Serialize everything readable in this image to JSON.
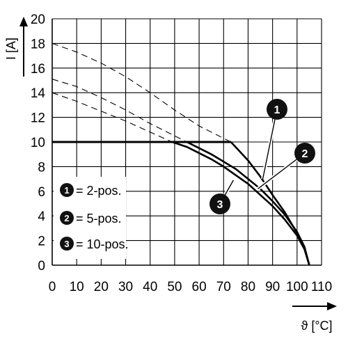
{
  "chart_data": {
    "type": "line",
    "xlabel": "ϑ [°C]",
    "ylabel": "I [A]",
    "xlim": [
      0,
      110
    ],
    "ylim": [
      0,
      20
    ],
    "x_ticks": [
      "0",
      "10",
      "20",
      "30",
      "40",
      "50",
      "60",
      "70",
      "80",
      "90",
      "100",
      "110"
    ],
    "y_ticks": [
      "0",
      "2",
      "4",
      "6",
      "8",
      "10",
      "12",
      "14",
      "16",
      "18",
      "20"
    ],
    "grid": true,
    "legend": {
      "placement": "lower-left",
      "entries": [
        {
          "badge": "1",
          "label": "= 2-pos."
        },
        {
          "badge": "2",
          "label": "= 5-pos."
        },
        {
          "badge": "3",
          "label": "= 10-pos."
        }
      ]
    },
    "limit_line": {
      "x": [
        0,
        73
      ],
      "y": [
        10,
        10
      ]
    },
    "series": [
      {
        "badge": "1",
        "dashed": {
          "x": [
            0,
            10,
            20,
            30,
            40,
            50,
            60,
            70,
            73
          ],
          "y": [
            18.0,
            17.3,
            16.4,
            15.3,
            14.0,
            12.6,
            11.3,
            10.3,
            10.0
          ]
        },
        "solid": {
          "x": [
            73,
            80,
            85,
            90,
            95,
            100,
            103,
            105
          ],
          "y": [
            10.0,
            8.5,
            7.2,
            5.7,
            4.3,
            2.6,
            1.4,
            0
          ]
        }
      },
      {
        "badge": "2",
        "dashed": {
          "x": [
            0,
            10,
            20,
            30,
            40,
            50,
            55
          ],
          "y": [
            15.1,
            14.5,
            13.6,
            12.6,
            11.5,
            10.5,
            10.0
          ]
        },
        "solid": {
          "x": [
            55,
            60,
            65,
            70,
            75,
            80,
            85,
            90,
            95,
            100,
            103,
            105
          ],
          "y": [
            10.0,
            9.5,
            9.0,
            8.4,
            7.8,
            7.0,
            6.2,
            5.2,
            4.1,
            2.7,
            1.5,
            0
          ]
        }
      },
      {
        "badge": "3",
        "dashed": {
          "x": [
            0,
            10,
            20,
            30,
            40,
            49
          ],
          "y": [
            14.0,
            13.3,
            12.5,
            11.7,
            10.8,
            10.0
          ]
        },
        "solid": {
          "x": [
            49,
            55,
            60,
            65,
            70,
            75,
            80,
            85,
            90,
            95,
            100,
            103,
            105
          ],
          "y": [
            10.0,
            9.6,
            9.1,
            8.6,
            8.0,
            7.3,
            6.6,
            5.7,
            4.8,
            3.7,
            2.4,
            1.3,
            0
          ]
        }
      }
    ],
    "callouts": [
      {
        "badge": "1",
        "target": [
          86,
          7.0
        ]
      },
      {
        "badge": "2",
        "target": [
          84,
          6.2
        ]
      },
      {
        "badge": "3",
        "target": [
          74,
          6.9
        ]
      }
    ]
  }
}
